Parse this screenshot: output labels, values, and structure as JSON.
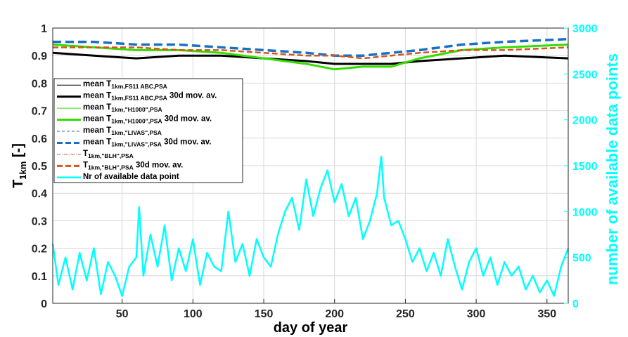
{
  "chart_data": {
    "type": "line",
    "xlabel": "day of year",
    "ylabel_main": "T",
    "ylabel_sub": "1km",
    "ylabel_unit": " [-]",
    "y2label": "number of available data points",
    "xlim": [
      1,
      365
    ],
    "ylim": [
      0,
      1
    ],
    "y2lim": [
      0,
      3000
    ],
    "xticks": [
      50,
      100,
      150,
      200,
      250,
      300,
      350
    ],
    "yticks": [
      0,
      0.1,
      0.2,
      0.3,
      0.4,
      0.5,
      0.6,
      0.7,
      0.8,
      0.9,
      1
    ],
    "ytick_labels": [
      "0",
      "0.1",
      "0.2",
      "0.3",
      "0.4",
      "0.5",
      "0.6",
      "0.7",
      "0.8",
      "0.9",
      "1"
    ],
    "y2ticks": [
      0,
      500,
      1000,
      1500,
      2000,
      2500,
      3000
    ],
    "grid": true,
    "legend_placement": "upper-left",
    "colors": {
      "fs11": "#000000",
      "h1000": "#33dd00",
      "livas": "#1a6fc4",
      "blh": "#d95319",
      "count": "#00ffff",
      "grid": "#d8d8d8"
    },
    "series": [
      {
        "name": "FS11 ABC",
        "x": [
          1,
          30,
          60,
          90,
          120,
          150,
          180,
          200,
          220,
          240,
          260,
          290,
          320,
          365
        ],
        "y": [
          0.91,
          0.9,
          0.89,
          0.9,
          0.9,
          0.89,
          0.88,
          0.87,
          0.87,
          0.87,
          0.88,
          0.89,
          0.9,
          0.89
        ]
      },
      {
        "name": "H1000",
        "x": [
          1,
          30,
          60,
          90,
          120,
          150,
          180,
          200,
          220,
          240,
          260,
          290,
          320,
          365
        ],
        "y": [
          0.94,
          0.93,
          0.92,
          0.92,
          0.91,
          0.89,
          0.87,
          0.85,
          0.86,
          0.86,
          0.89,
          0.92,
          0.93,
          0.94
        ]
      },
      {
        "name": "LIVAS",
        "x": [
          1,
          30,
          60,
          90,
          120,
          150,
          180,
          200,
          220,
          240,
          260,
          290,
          320,
          365
        ],
        "y": [
          0.95,
          0.95,
          0.94,
          0.94,
          0.93,
          0.92,
          0.91,
          0.9,
          0.9,
          0.91,
          0.92,
          0.94,
          0.95,
          0.96
        ]
      },
      {
        "name": "BLH",
        "x": [
          1,
          30,
          60,
          90,
          120,
          150,
          180,
          200,
          220,
          240,
          260,
          290,
          320,
          365
        ],
        "y": [
          0.93,
          0.93,
          0.93,
          0.92,
          0.92,
          0.91,
          0.9,
          0.9,
          0.89,
          0.9,
          0.91,
          0.92,
          0.92,
          0.93
        ]
      }
    ],
    "count_series": {
      "name": "Nr of available data point",
      "x": [
        1,
        5,
        10,
        15,
        20,
        25,
        30,
        35,
        40,
        45,
        50,
        55,
        60,
        62,
        65,
        70,
        75,
        80,
        85,
        90,
        95,
        100,
        105,
        110,
        115,
        120,
        125,
        130,
        135,
        140,
        145,
        150,
        155,
        160,
        165,
        170,
        175,
        180,
        185,
        190,
        195,
        200,
        205,
        210,
        215,
        220,
        225,
        230,
        233,
        235,
        240,
        245,
        250,
        255,
        260,
        265,
        270,
        275,
        280,
        285,
        290,
        295,
        300,
        305,
        310,
        315,
        320,
        325,
        330,
        335,
        340,
        345,
        350,
        355,
        360,
        365
      ],
      "y": [
        650,
        200,
        500,
        150,
        550,
        250,
        600,
        100,
        450,
        300,
        80,
        400,
        500,
        1050,
        300,
        750,
        400,
        850,
        250,
        600,
        350,
        700,
        200,
        550,
        400,
        350,
        1000,
        450,
        650,
        300,
        700,
        500,
        400,
        750,
        1000,
        1150,
        800,
        1350,
        950,
        1250,
        1450,
        1100,
        1300,
        950,
        1150,
        700,
        900,
        1200,
        1600,
        1150,
        850,
        900,
        700,
        450,
        600,
        350,
        550,
        300,
        700,
        400,
        150,
        450,
        600,
        300,
        500,
        200,
        450,
        300,
        400,
        150,
        300,
        120,
        250,
        80,
        400,
        600
      ]
    },
    "legend": [
      {
        "main": "mean T",
        "sub": "1km,FS11 ABC,PSA",
        "suffix": "",
        "color": "#000000",
        "style": "thin"
      },
      {
        "main": "mean T",
        "sub": "1km,FS11 ABC,PSA",
        "suffix": " 30d mov. av.",
        "color": "#000000",
        "style": "thick"
      },
      {
        "main": "mean T",
        "sub": "1km,\"H1000\",PSA",
        "suffix": "",
        "color": "#33dd00",
        "style": "thin"
      },
      {
        "main": "mean T",
        "sub": "1km,\"H1000\",PSA",
        "suffix": " 30d mov. av.",
        "color": "#33dd00",
        "style": "thick"
      },
      {
        "main": "mean T",
        "sub": "1km,\"LIVAS\",PSA",
        "suffix": "",
        "color": "#1a6fc4",
        "style": "thin-dash"
      },
      {
        "main": "mean T",
        "sub": "1km,\"LIVAS\",PSA",
        "suffix": " 30d mov. av.",
        "color": "#1a6fc4",
        "style": "thick-dash"
      },
      {
        "main": "T",
        "sub": "1km,\"BLH\",PSA",
        "suffix": "",
        "color": "#d95319",
        "style": "thin-dashdot"
      },
      {
        "main": "T",
        "sub": "1km,\"BLH\",PSA",
        "suffix": " 30d mov. av.",
        "color": "#d95319",
        "style": "thick-dash"
      },
      {
        "main": "Nr of available data point",
        "sub": "",
        "suffix": "",
        "color": "#00ffff",
        "style": "cyan"
      }
    ]
  }
}
